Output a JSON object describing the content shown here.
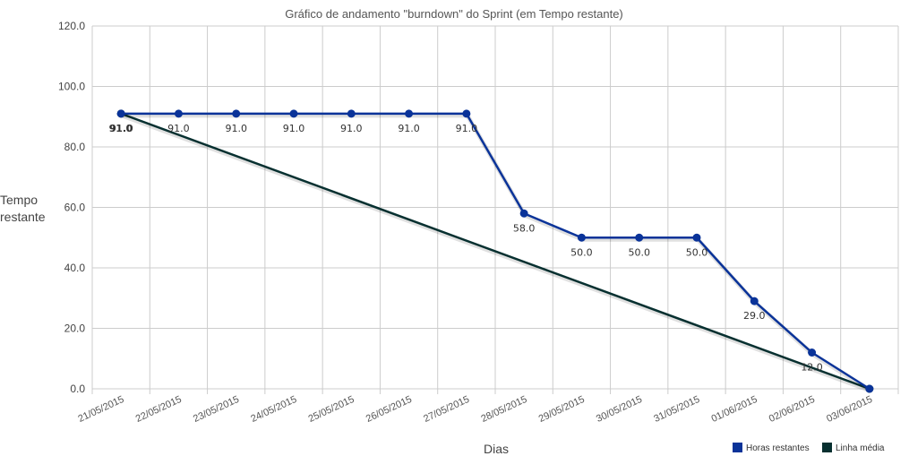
{
  "chart_data": {
    "type": "line",
    "title": "Gráfico de andamento \"burndown\" do Sprint (em Tempo restante)",
    "xlabel": "Dias",
    "ylabel_lines": [
      "Tempo",
      "restante"
    ],
    "categories": [
      "21/05/2015",
      "22/05/2015",
      "23/05/2015",
      "24/05/2015",
      "25/05/2015",
      "26/05/2015",
      "27/05/2015",
      "28/05/2015",
      "29/05/2015",
      "30/05/2015",
      "31/05/2015",
      "01/06/2015",
      "02/06/2015",
      "03/06/2015"
    ],
    "ylim": [
      0,
      120
    ],
    "yticks": [
      0,
      20,
      40,
      60,
      80,
      100,
      120
    ],
    "ytick_labels": [
      "0.0",
      "20.0",
      "40.0",
      "60.0",
      "80.0",
      "100.0",
      "120.0"
    ],
    "grid": true,
    "legend_position": "bottom-right",
    "series": [
      {
        "name": "Horas restantes",
        "color": "#0a3399",
        "values": [
          91,
          91,
          91,
          91,
          91,
          91,
          91,
          58,
          50,
          50,
          50,
          29,
          12,
          0
        ],
        "labels": [
          "91.0",
          "91.0",
          "91.0",
          "91.0",
          "91.0",
          "91.0",
          "91.0",
          "58.0",
          "50.0",
          "50.0",
          "50.0",
          "29.0",
          "12.0",
          ""
        ]
      },
      {
        "name": "Linha média",
        "color": "#073030",
        "values": [
          91,
          null,
          null,
          null,
          null,
          null,
          null,
          null,
          null,
          null,
          null,
          null,
          null,
          0
        ],
        "labels": [
          "91.0",
          "",
          "",
          "",
          "",
          "",
          "",
          "",
          "",
          "",
          "",
          "",
          "",
          ""
        ]
      }
    ]
  }
}
